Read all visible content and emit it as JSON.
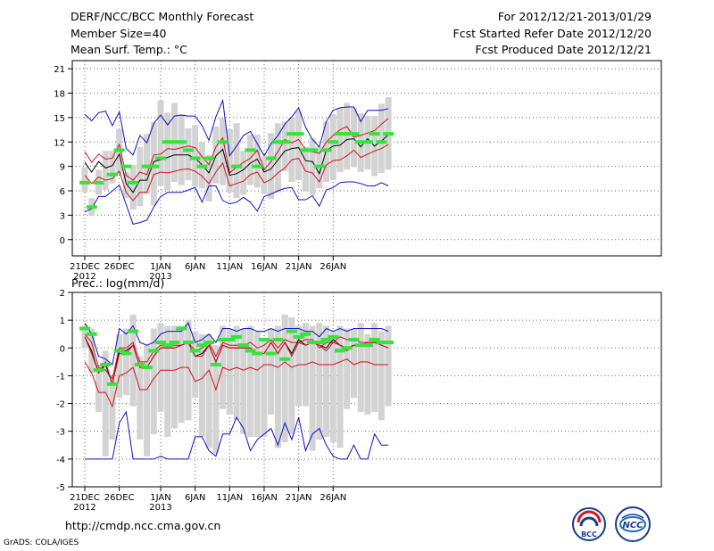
{
  "header": {
    "title": "DERF/NCC/BCC Monthly Forecast",
    "member_size": "Member Size=40",
    "variable": "Mean Surf. Temp.: °C",
    "period": "For 2012/12/21-2013/01/29",
    "refer_date": "Fcst Started Refer Date 2012/12/20",
    "produced_date": "Fcst Produced Date 2012/12/21"
  },
  "footer": {
    "url": "http://cmdp.ncc.cma.gov.cn",
    "credit": "GrADS: COLA/IGES",
    "logo_bcc": "BCC",
    "logo_ncc": "NCC"
  },
  "colors": {
    "max_min": "#1010c8",
    "pct": "#d0101e",
    "mean": "#000000",
    "box": "#d3d3d3",
    "obs": "#36e33a",
    "grid": "#666666"
  },
  "chart_data": [
    {
      "type": "line",
      "title": "Mean Surf. Temp.: °C",
      "x_tick_labels": [
        "21DEC",
        "26DEC",
        "1JAN",
        "6JAN",
        "11JAN",
        "16JAN",
        "21JAN",
        "26JAN"
      ],
      "x_year_labels": [
        "2012",
        "2013"
      ],
      "x_tick_days": [
        1,
        6,
        12,
        17,
        22,
        27,
        32,
        37
      ],
      "y_ticks": [
        0,
        3,
        6,
        9,
        12,
        15,
        18,
        21
      ],
      "ylim": [
        -2,
        22
      ],
      "series": [
        {
          "name": "max",
          "values": [
            15.4,
            14.6,
            15.6,
            15.8,
            14,
            15.7,
            11.2,
            10.4,
            12.8,
            11.9,
            14.3,
            15.3,
            14.1,
            15.2,
            15.3,
            15.2,
            15.2,
            14,
            12.2,
            15.1,
            17.1,
            10.3,
            11.5,
            12.8,
            13.3,
            11.8,
            10.3,
            11.8,
            12.8,
            14.2,
            15.1,
            16.2,
            13.8,
            12.3,
            11.4,
            14.5,
            15.9,
            16.2,
            16.3,
            16.3,
            14.5,
            15.9,
            15.9,
            15.9,
            16.1
          ]
        },
        {
          "name": "p90",
          "values": [
            10.8,
            9.5,
            10.5,
            9.9,
            10,
            11.7,
            7.9,
            7.3,
            8.3,
            8,
            10.4,
            10.5,
            11.2,
            11.1,
            11.3,
            11.5,
            11.3,
            10.2,
            9.2,
            11.4,
            12.5,
            8.2,
            8.9,
            9.5,
            10,
            11,
            8.6,
            9.6,
            10.8,
            12.3,
            11.9,
            12.3,
            11.1,
            10.8,
            10.6,
            12,
            12.8,
            13.5,
            13.9,
            12.6,
            12.8,
            13.1,
            13.4,
            14.2,
            14.9
          ]
        },
        {
          "name": "mean",
          "values": [
            9.5,
            8.3,
            9.6,
            8.8,
            9.1,
            10.5,
            6.9,
            5.8,
            7.3,
            7.3,
            9.6,
            9.8,
            10.1,
            10.4,
            10.4,
            10.4,
            10,
            9.2,
            8.2,
            10.3,
            11.1,
            7.9,
            8.1,
            8.6,
            9.4,
            9.9,
            8.3,
            8.7,
            9.8,
            10.9,
            11.2,
            11.3,
            9.7,
            9.6,
            8.1,
            11,
            11.5,
            11.6,
            12.3,
            12.4,
            11.4,
            12.4,
            11.5,
            12.1,
            12.9
          ]
        },
        {
          "name": "p10",
          "values": [
            7.9,
            6.9,
            7.7,
            7.3,
            7.5,
            8.4,
            5.8,
            4.8,
            5.8,
            5.8,
            8,
            8.3,
            8.2,
            8.4,
            8.6,
            8.7,
            8.4,
            7.8,
            6.9,
            8.3,
            9.4,
            6.6,
            6.9,
            7.2,
            8,
            8.3,
            7,
            7.4,
            8.2,
            8.8,
            9.8,
            10,
            8.4,
            8.2,
            7.1,
            9.2,
            9.7,
            9.8,
            10.3,
            11,
            10.1,
            10.5,
            10.9,
            11.2,
            11.7
          ]
        },
        {
          "name": "min",
          "values": [
            3.4,
            3.8,
            5.3,
            5.3,
            6,
            6.7,
            4.3,
            1.9,
            2.1,
            2.4,
            4,
            5.3,
            5.8,
            5.8,
            5.8,
            6.1,
            6.4,
            4.6,
            6.6,
            6.6,
            4.8,
            4.4,
            4.6,
            5.2,
            4.6,
            3.5,
            5.3,
            5.6,
            6,
            6.3,
            6.4,
            4.9,
            4.9,
            5.4,
            4.1,
            6.1,
            6.4,
            7,
            7.1,
            7.1,
            6.9,
            6.6,
            6.6,
            7,
            6.6
          ]
        }
      ],
      "box_low": [
        5.8,
        2.9,
        5.5,
        6.1,
        6.9,
        8,
        5.1,
        3.7,
        4.1,
        5.6,
        4.2,
        6.6,
        6.1,
        7.1,
        6.7,
        7.3,
        6.5,
        6.3,
        4.7,
        6.9,
        6.7,
        5.8,
        5.1,
        5.5,
        6.7,
        6.4,
        5.6,
        5,
        5.8,
        8.4,
        7.1,
        7.3,
        5.9,
        5.5,
        6.3,
        7.1,
        7.3,
        8.3,
        8.6,
        8.9,
        8.3,
        8.6,
        7.8,
        8.2,
        8.6
      ],
      "box_high": [
        8.9,
        5.1,
        8.6,
        10.9,
        10.9,
        13.6,
        8.3,
        9.2,
        11.4,
        13,
        14.4,
        17.1,
        15.6,
        16.8,
        15.4,
        13.7,
        14.1,
        12,
        10.4,
        13.9,
        15,
        13.6,
        14.3,
        10.9,
        12.9,
        12.9,
        10.2,
        13.1,
        14.3,
        14.5,
        15,
        15.8,
        11.4,
        12.5,
        11.5,
        14.5,
        15.4,
        16.2,
        16.8,
        16.2,
        15.5,
        15.2,
        15.2,
        16.7,
        17.5
      ],
      "observed": [
        7,
        4,
        7,
        null,
        8,
        11,
        9,
        7,
        null,
        9,
        9,
        10,
        12,
        12,
        12,
        11,
        10,
        9,
        10,
        null,
        12,
        null,
        9,
        null,
        11,
        9,
        null,
        10,
        12,
        12,
        13,
        13,
        11,
        11,
        9,
        11,
        12,
        13,
        13,
        13,
        12,
        12,
        13,
        12,
        13
      ],
      "ylabel": "Mean Surf. Temp.: °C"
    },
    {
      "type": "line",
      "title": "Prec.: log(mm/d)",
      "x_tick_labels": [
        "21DEC",
        "26DEC",
        "1JAN",
        "6JAN",
        "11JAN",
        "16JAN",
        "21JAN",
        "26JAN"
      ],
      "x_year_labels": [
        "2012",
        "2013"
      ],
      "x_tick_days": [
        1,
        6,
        12,
        17,
        22,
        27,
        32,
        37
      ],
      "y_ticks": [
        -5,
        -4,
        -3,
        -2,
        -1,
        0,
        1,
        2
      ],
      "ylim": [
        -5,
        2
      ],
      "series": [
        {
          "name": "max",
          "values": [
            0.9,
            0.5,
            -0.3,
            -0.4,
            -0.6,
            0.7,
            0.5,
            0.8,
            0.2,
            0.1,
            0.2,
            0.5,
            0.6,
            0.6,
            0.6,
            0.9,
            0.2,
            0.3,
            0.5,
            0.2,
            0.7,
            0.7,
            0.6,
            0.7,
            0.7,
            0.6,
            0.6,
            0.7,
            0.6,
            0.7,
            0.7,
            0.7,
            0.6,
            0.6,
            0.4,
            0.7,
            0.6,
            0.7,
            0.6,
            0.7,
            0.7,
            0.7,
            0.7,
            0.7,
            0.6
          ]
        },
        {
          "name": "p90",
          "values": [
            0.5,
            0.2,
            -0.7,
            -0.8,
            -1.1,
            0,
            0,
            0.2,
            -0.5,
            -0.5,
            -0.1,
            0.1,
            0.1,
            0.1,
            0.1,
            0.2,
            -0.1,
            0,
            0.2,
            -0.3,
            0.2,
            0.1,
            0.1,
            0.1,
            0.2,
            0,
            0.1,
            0.3,
            0,
            0.3,
            0.2,
            0.2,
            0.3,
            0.3,
            0,
            0.2,
            0.2,
            0.4,
            0.3,
            0.3,
            0.2,
            0.2,
            0.2,
            0.2,
            0.2
          ]
        },
        {
          "name": "mean",
          "values": [
            0.4,
            -0.1,
            -0.9,
            -0.6,
            -1.3,
            -0.1,
            -0.1,
            0.1,
            -0.7,
            -0.7,
            -0.3,
            0,
            0,
            0,
            0.1,
            0.2,
            -0.3,
            -0.2,
            0.1,
            -0.5,
            0.1,
            0,
            0,
            0,
            0,
            -0.2,
            -0.2,
            0.2,
            -0.2,
            0.2,
            -0.2,
            0.3,
            0.1,
            0.2,
            0.1,
            0,
            0.3,
            0.1,
            0,
            0.1,
            0.1,
            0.2,
            0.2,
            0.1,
            0
          ]
        },
        {
          "name": "p10",
          "values": [
            -0.5,
            -0.9,
            -1.6,
            -1.6,
            -2.1,
            -1,
            -0.9,
            -0.7,
            -1.5,
            -1.5,
            -1.1,
            -0.8,
            -0.8,
            -0.8,
            -0.7,
            -0.7,
            -1.2,
            -1.1,
            -0.8,
            -1.5,
            -0.7,
            -0.8,
            -0.7,
            -0.8,
            -0.7,
            -0.8,
            -0.6,
            -0.6,
            -0.7,
            -0.5,
            -0.7,
            -0.6,
            -0.6,
            -0.5,
            -0.6,
            -0.6,
            -0.6,
            -0.5,
            -0.4,
            -0.6,
            -0.5,
            -0.5,
            -0.6,
            -0.6,
            -0.6
          ]
        },
        {
          "name": "min",
          "values": [
            -4,
            -4,
            -4,
            -4,
            -4,
            -2.7,
            -2.3,
            -4,
            -4,
            -4,
            -4,
            -3.9,
            -4,
            -4,
            -4,
            -4,
            -3.2,
            -3.2,
            -3.7,
            -3.9,
            -3.1,
            -3.1,
            -2.5,
            -2.9,
            -3.7,
            -3.3,
            -3.1,
            -2.9,
            -3.5,
            -2.7,
            -3.3,
            -2.5,
            -3.7,
            -3.1,
            -2.9,
            -3.5,
            -3.9,
            -4,
            -4,
            -3.5,
            -4,
            -4,
            -3.1,
            -3.5,
            -3.5
          ]
        },
        {
          "name": "mean2",
          "values": [
            0.4,
            -0.2,
            -0.9,
            -0.5,
            -1.3,
            -0.2,
            -0.2,
            0.1,
            -0.7,
            -0.7,
            -0.3,
            0,
            0,
            0,
            0.1,
            0.2,
            -0.3,
            -0.3,
            0.1,
            -0.5,
            0.1,
            0,
            0,
            0,
            0,
            -0.2,
            -0.2,
            0.2,
            -0.2,
            0.2,
            -0.3,
            0.2,
            0.1,
            0.2,
            0.1,
            -0.1,
            0.2,
            0.1,
            -0.1,
            0.1,
            0.1,
            0.2,
            0.2,
            0.1,
            0
          ]
        }
      ],
      "box_low": [
        0,
        -0.9,
        -2.3,
        -3.9,
        -3.3,
        -1.8,
        -1.7,
        -2.1,
        -3.3,
        -3.9,
        -3.1,
        -2.3,
        -3.2,
        -2.9,
        -2.7,
        -2.6,
        -1.8,
        -3.2,
        -3.6,
        -3.8,
        -2.2,
        -2.4,
        -2.6,
        -3.1,
        -3.2,
        -3.2,
        -3.2,
        -2.4,
        -3.6,
        -3.4,
        -3.1,
        -2.1,
        -2.1,
        -3.7,
        -3.3,
        -3.2,
        -3.4,
        -3.6,
        -2.2,
        -1.8,
        -2.3,
        -2.4,
        -2.3,
        -2.6,
        -2.1
      ],
      "box_high": [
        0.8,
        0.7,
        -0.6,
        -0.1,
        -1.1,
        0.5,
        0.7,
        1.2,
        -0.3,
        0.1,
        0.7,
        0.9,
        0.8,
        0.8,
        0.8,
        1,
        0.6,
        0.5,
        0.5,
        0.1,
        0.8,
        0.7,
        0.8,
        0.7,
        0.8,
        0.6,
        0.3,
        0.7,
        0.8,
        1.2,
        1.1,
        0.8,
        0.9,
        0.8,
        0.9,
        0.8,
        0.6,
        0.8,
        0.7,
        0.7,
        0.9,
        0.5,
        0.9,
        0.6,
        0.8
      ],
      "observed": [
        0.7,
        0.5,
        -0.8,
        -0.6,
        -1.3,
        -0.1,
        -0.2,
        0.6,
        -0.6,
        -0.7,
        -0.1,
        0.2,
        0.1,
        0.2,
        0.7,
        0.2,
        -0.1,
        0.1,
        0.2,
        -0.6,
        0.3,
        0.3,
        0.4,
        0.1,
        -0.1,
        -0.2,
        0.3,
        -0.2,
        0.3,
        -0.4,
        0.6,
        0.4,
        0.5,
        0.2,
        0.2,
        0.3,
        0.4,
        -0.1,
        0,
        0.3,
        0.1,
        0.1,
        0.3,
        0.2,
        0.2
      ],
      "ylabel": "Prec.: log(mm/d)"
    }
  ]
}
